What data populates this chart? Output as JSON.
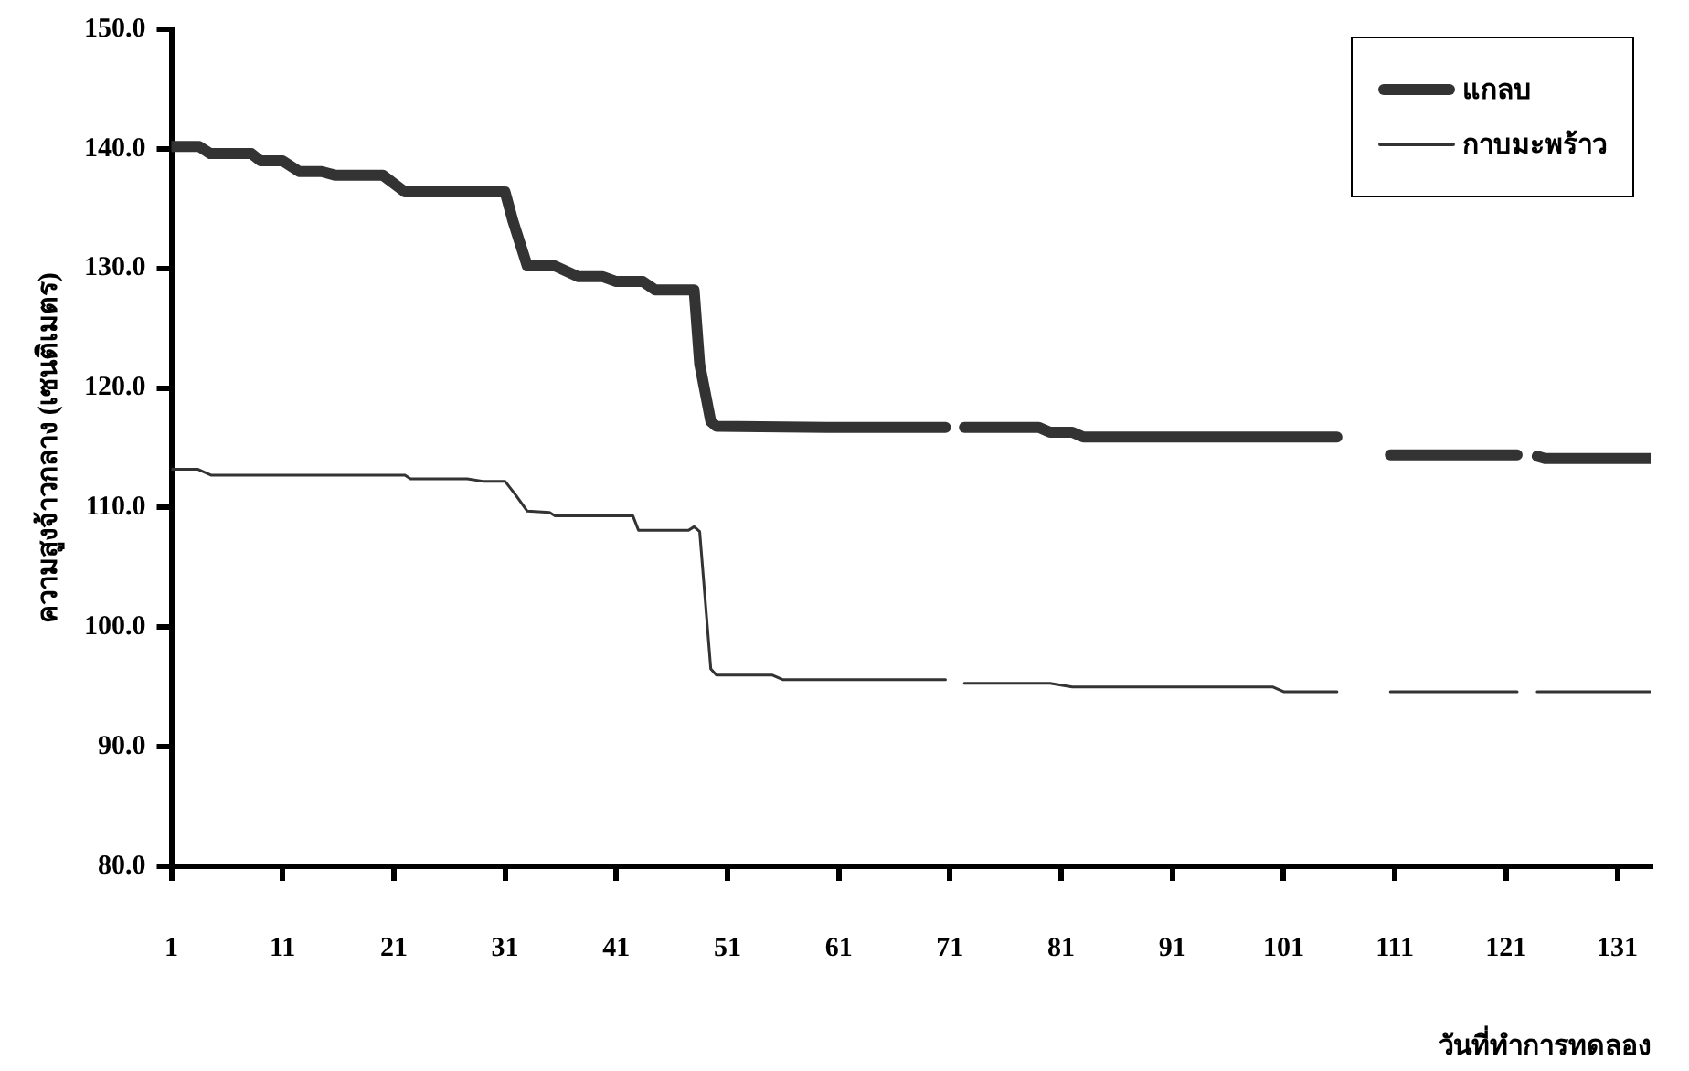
{
  "chart_data": {
    "type": "line",
    "xlabel": "วันที่ทำการทดลอง",
    "ylabel": "ความสูงจ้าวกลาง (เซนติเมตร)",
    "xlim": [
      1,
      134
    ],
    "xticks": [
      1,
      11,
      21,
      31,
      41,
      51,
      61,
      71,
      81,
      91,
      101,
      111,
      121,
      131
    ],
    "ylim": [
      80,
      150
    ],
    "yticks": [
      {
        "value": 80,
        "label": "80.0"
      },
      {
        "value": 90,
        "label": "90.0"
      },
      {
        "value": 100,
        "label": "100.0"
      },
      {
        "value": 110,
        "label": "110.0"
      },
      {
        "value": 120,
        "label": "120.0"
      },
      {
        "value": 130,
        "label": "130.0"
      },
      {
        "value": 140,
        "label": "140.0"
      },
      {
        "value": 150,
        "label": "150.0"
      }
    ],
    "grid": false,
    "legend": "top right",
    "marker": "none",
    "line_style": "solid",
    "series": [
      {
        "name": "แกลบ",
        "color": "#333333",
        "x": [
          1,
          3.5,
          4.5,
          8.2,
          9,
          11,
          12.5,
          14.5,
          15.7,
          20,
          22,
          31,
          31.7,
          33,
          35.5,
          37.6,
          39.8,
          41,
          43.4,
          44.5,
          48,
          48.5,
          49.5,
          50,
          60,
          70.6,
          71.5,
          72.3,
          75,
          79,
          80,
          82,
          83,
          95,
          105.8,
          108,
          110.6,
          122,
          123,
          123.8,
          124.5,
          134
        ],
        "values": [
          140.2,
          140.2,
          139.6,
          139.6,
          139.0,
          139.0,
          138.1,
          138.1,
          137.8,
          137.8,
          136.4,
          136.4,
          134,
          130.2,
          130.2,
          129.3,
          129.3,
          128.9,
          128.9,
          128.2,
          128.2,
          122,
          117.2,
          116.8,
          116.7,
          116.7,
          null,
          116.7,
          116.7,
          116.7,
          116.3,
          116.3,
          115.9,
          115.9,
          115.9,
          null,
          114.4,
          114.4,
          null,
          114.3,
          114.1,
          114.1
        ]
      },
      {
        "name": "กาบมะพร้าว",
        "color": "#333333",
        "x": [
          1,
          3.4,
          4.6,
          22,
          22.5,
          27.6,
          29,
          31,
          32,
          33,
          35,
          35.5,
          42.5,
          43,
          47.5,
          48,
          48.5,
          49.5,
          50,
          55,
          56,
          70.6,
          71.5,
          72.3,
          80,
          82,
          100,
          101,
          105.8,
          108,
          110.6,
          122,
          123,
          123.8,
          134
        ],
        "values": [
          113.2,
          113.2,
          112.7,
          112.7,
          112.4,
          112.4,
          112.2,
          112.2,
          111,
          109.7,
          109.6,
          109.3,
          109.3,
          108.1,
          108.1,
          108.4,
          108.0,
          96.5,
          96.0,
          96.0,
          95.6,
          95.6,
          null,
          95.3,
          95.3,
          95.0,
          95.0,
          94.6,
          94.6,
          null,
          94.6,
          94.6,
          null,
          94.6,
          94.6
        ]
      }
    ]
  }
}
